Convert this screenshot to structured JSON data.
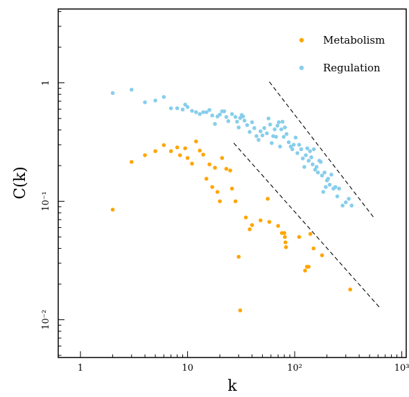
{
  "chart_data": {
    "type": "scatter",
    "xlabel": "k",
    "ylabel": "C(k)",
    "xscale": "log",
    "yscale": "log",
    "xlim": [
      0.62,
      1100
    ],
    "ylim": [
      0.0048,
      4.2
    ],
    "x_ticks": [
      {
        "value": 1,
        "label": "1"
      },
      {
        "value": 10,
        "label": "10"
      },
      {
        "value": 100,
        "label": "10²"
      },
      {
        "value": 1000,
        "label": "10³"
      }
    ],
    "y_ticks": [
      {
        "value": 1,
        "label": "1"
      },
      {
        "value": 0.1,
        "label": "10⁻¹"
      },
      {
        "value": 0.01,
        "label": "10⁻²"
      }
    ],
    "grid": false,
    "legend_position": "top-right",
    "series": [
      {
        "name": "Metabolism",
        "color": "#FFA500",
        "points": [
          [
            2,
            0.085
          ],
          [
            3,
            0.215
          ],
          [
            4,
            0.245
          ],
          [
            5,
            0.265
          ],
          [
            6,
            0.298
          ],
          [
            7,
            0.265
          ],
          [
            8,
            0.285
          ],
          [
            8.5,
            0.245
          ],
          [
            9.5,
            0.28
          ],
          [
            10,
            0.232
          ],
          [
            11,
            0.208
          ],
          [
            12,
            0.32
          ],
          [
            13,
            0.268
          ],
          [
            14,
            0.248
          ],
          [
            15,
            0.155
          ],
          [
            16,
            0.205
          ],
          [
            17,
            0.132
          ],
          [
            18,
            0.192
          ],
          [
            19,
            0.12
          ],
          [
            20,
            0.1
          ],
          [
            21,
            0.232
          ],
          [
            23,
            0.188
          ],
          [
            25,
            0.182
          ],
          [
            26,
            0.128
          ],
          [
            28,
            0.1
          ],
          [
            30,
            0.034
          ],
          [
            31,
            0.012
          ],
          [
            35,
            0.073
          ],
          [
            38,
            0.058
          ],
          [
            40,
            0.063
          ],
          [
            48,
            0.069
          ],
          [
            56,
            0.105
          ],
          [
            58,
            0.067
          ],
          [
            70,
            0.062
          ],
          [
            76,
            0.054
          ],
          [
            80,
            0.054
          ],
          [
            81,
            0.05
          ],
          [
            82,
            0.045
          ],
          [
            83,
            0.041
          ],
          [
            110,
            0.05
          ],
          [
            125,
            0.026
          ],
          [
            130,
            0.028
          ],
          [
            135,
            0.028
          ],
          [
            140,
            0.053
          ],
          [
            150,
            0.04
          ],
          [
            180,
            0.035
          ],
          [
            330,
            0.018
          ]
        ]
      },
      {
        "name": "Regulation",
        "color": "#87CEEB",
        "points": [
          [
            2,
            0.82
          ],
          [
            3,
            0.875
          ],
          [
            4,
            0.685
          ],
          [
            5,
            0.71
          ],
          [
            6,
            0.76
          ],
          [
            7,
            0.61
          ],
          [
            8,
            0.61
          ],
          [
            9,
            0.595
          ],
          [
            9.5,
            0.655
          ],
          [
            10,
            0.625
          ],
          [
            11,
            0.58
          ],
          [
            12,
            0.565
          ],
          [
            13,
            0.545
          ],
          [
            14,
            0.565
          ],
          [
            15,
            0.565
          ],
          [
            16,
            0.59
          ],
          [
            17,
            0.53
          ],
          [
            18,
            0.45
          ],
          [
            19,
            0.52
          ],
          [
            20,
            0.54
          ],
          [
            21,
            0.575
          ],
          [
            22,
            0.575
          ],
          [
            23,
            0.515
          ],
          [
            24,
            0.475
          ],
          [
            26,
            0.545
          ],
          [
            28,
            0.515
          ],
          [
            29,
            0.47
          ],
          [
            30,
            0.42
          ],
          [
            31,
            0.505
          ],
          [
            32,
            0.535
          ],
          [
            33,
            0.52
          ],
          [
            34,
            0.48
          ],
          [
            36,
            0.44
          ],
          [
            38,
            0.385
          ],
          [
            40,
            0.465
          ],
          [
            42,
            0.415
          ],
          [
            44,
            0.355
          ],
          [
            46,
            0.33
          ],
          [
            48,
            0.39
          ],
          [
            50,
            0.36
          ],
          [
            52,
            0.415
          ],
          [
            55,
            0.375
          ],
          [
            57,
            0.5
          ],
          [
            59,
            0.445
          ],
          [
            61,
            0.31
          ],
          [
            63,
            0.355
          ],
          [
            65,
            0.405
          ],
          [
            67,
            0.35
          ],
          [
            69,
            0.435
          ],
          [
            71,
            0.465
          ],
          [
            73,
            0.29
          ],
          [
            75,
            0.405
          ],
          [
            77,
            0.47
          ],
          [
            79,
            0.35
          ],
          [
            81,
            0.42
          ],
          [
            84,
            0.37
          ],
          [
            88,
            0.315
          ],
          [
            92,
            0.29
          ],
          [
            95,
            0.275
          ],
          [
            98,
            0.3
          ],
          [
            102,
            0.345
          ],
          [
            106,
            0.255
          ],
          [
            110,
            0.3
          ],
          [
            115,
            0.275
          ],
          [
            119,
            0.23
          ],
          [
            123,
            0.195
          ],
          [
            127,
            0.245
          ],
          [
            131,
            0.28
          ],
          [
            135,
            0.22
          ],
          [
            139,
            0.265
          ],
          [
            143,
            0.235
          ],
          [
            147,
            0.205
          ],
          [
            151,
            0.275
          ],
          [
            155,
            0.185
          ],
          [
            160,
            0.195
          ],
          [
            165,
            0.175
          ],
          [
            170,
            0.22
          ],
          [
            175,
            0.215
          ],
          [
            180,
            0.165
          ],
          [
            185,
            0.12
          ],
          [
            190,
            0.175
          ],
          [
            195,
            0.132
          ],
          [
            200,
            0.15
          ],
          [
            205,
            0.155
          ],
          [
            212,
            0.138
          ],
          [
            220,
            0.168
          ],
          [
            230,
            0.128
          ],
          [
            240,
            0.132
          ],
          [
            250,
            0.11
          ],
          [
            260,
            0.128
          ],
          [
            280,
            0.092
          ],
          [
            300,
            0.098
          ],
          [
            320,
            0.105
          ],
          [
            340,
            0.092
          ]
        ]
      }
    ],
    "reference_lines": [
      {
        "style": "dashed",
        "color": "#000000",
        "points": [
          [
            58,
            1.02
          ],
          [
            560,
            0.071
          ]
        ]
      },
      {
        "style": "dashed",
        "color": "#000000",
        "points": [
          [
            27,
            0.31
          ],
          [
            630,
            0.0125
          ]
        ]
      }
    ]
  }
}
